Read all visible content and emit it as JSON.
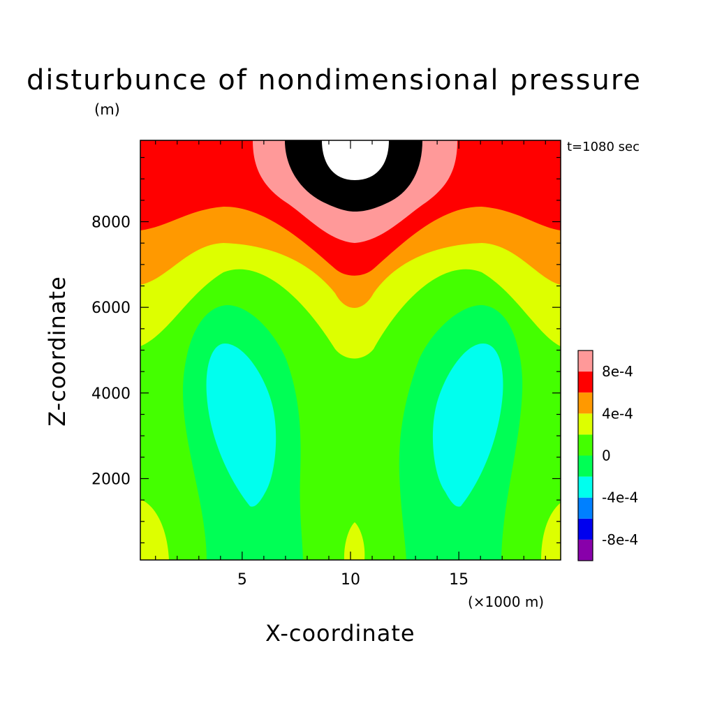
{
  "chart_data": {
    "type": "heatmap",
    "title": "disturbunce of nondimensional pressure",
    "y_unit": "(m)",
    "annotation": "t=1080 sec",
    "xlabel": "X-coordinate",
    "x_unit": "(×1000 m)",
    "ylabel": "Z-coordinate",
    "xlim": [
      0.3,
      19.7
    ],
    "ylim": [
      100,
      9900
    ],
    "x_ticks": [
      5,
      10,
      15
    ],
    "y_ticks": [
      2000,
      4000,
      6000,
      8000
    ],
    "x_tick_labels": [
      "5",
      "10",
      "15"
    ],
    "y_tick_labels": [
      "2000",
      "4000",
      "6000",
      "8000"
    ],
    "grid": false,
    "legend_position": "right",
    "colorbar": {
      "levels": [
        -0.001,
        -0.0008,
        -0.0006,
        -0.0004,
        -0.0002,
        0,
        0.0002,
        0.0004,
        0.0006,
        0.0008,
        0.001
      ],
      "colors": [
        "#8800aa",
        "#0000ee",
        "#0080ff",
        "#00ffee",
        "#00ff55",
        "#44ff00",
        "#ddff00",
        "#ff9900",
        "#ff0000",
        "#ff9999"
      ],
      "tick_labels": [
        {
          "level": 0.0008,
          "text": "8e-4"
        },
        {
          "level": 0.0004,
          "text": "4e-4"
        },
        {
          "level": 0,
          "text": "0"
        },
        {
          "level": -0.0004,
          "text": "-4e-4"
        },
        {
          "level": -0.0008,
          "text": "-8e-4"
        }
      ]
    },
    "field_extremes": [
      {
        "x": 10.2,
        "z": 9900,
        "value": 0.0011,
        "note": "maximum at top center (white)"
      },
      {
        "x": 4.8,
        "z": 3200,
        "value": -0.0005,
        "note": "left minimum"
      },
      {
        "x": 15.5,
        "z": 3200,
        "value": -0.0005,
        "note": "right minimum"
      }
    ]
  }
}
